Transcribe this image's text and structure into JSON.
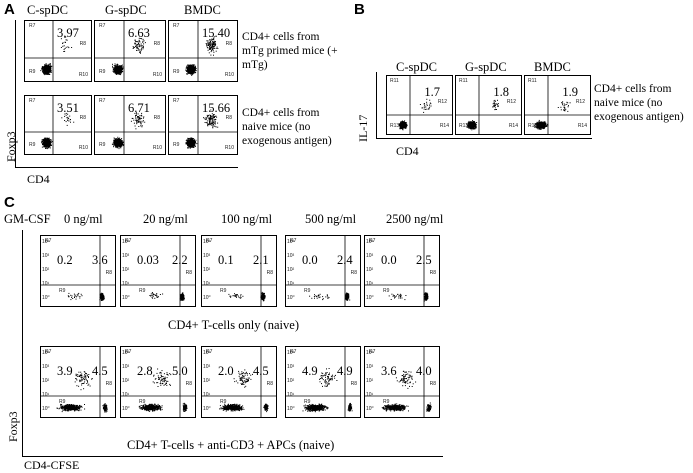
{
  "panel_a": {
    "letter": "A",
    "col_headers": [
      "C-spDC",
      "G-spDC",
      "BMDC"
    ],
    "y_axis_label": "Foxp3",
    "x_axis_label": "CD4",
    "rows": [
      {
        "values": [
          "3.97",
          "6.63",
          "15.40"
        ],
        "note": "CD4+ cells from mTg primed mice (+ mTg)"
      },
      {
        "values": [
          "3.51",
          "6.71",
          "15.66"
        ],
        "note": "CD4+ cells from naive mice (no exogenous antigen)"
      }
    ],
    "gates": [
      "R8",
      "R9",
      "R10",
      "R7"
    ]
  },
  "panel_b": {
    "letter": "B",
    "col_headers": [
      "C-spDC",
      "G-spDC",
      "BMDC"
    ],
    "values": [
      "1.7",
      "1.8",
      "1.9"
    ],
    "y_axis_label": "IL-17",
    "x_axis_label": "CD4",
    "note": "CD4+ cells from naive mice (no exogenous antigen)",
    "gates": [
      "R11",
      "R12",
      "R13",
      "R14"
    ]
  },
  "panel_c": {
    "letter": "C",
    "gmcsf_label": "GM-CSF",
    "concentrations": [
      "0 ng/ml",
      "20 ng/ml",
      "100 ng/ml",
      "500 ng/ml",
      "2500 ng/ml"
    ],
    "row1_values": [
      [
        "0.2",
        "3.6"
      ],
      [
        "0.03",
        "2.2"
      ],
      [
        "0.1",
        "2.1"
      ],
      [
        "0.0",
        "2.4"
      ],
      [
        "0.0",
        "2.5"
      ]
    ],
    "row1_caption": "CD4+ T-cells only (naive)",
    "row2_values": [
      [
        "3.9",
        "4.5"
      ],
      [
        "2.8",
        "5.0"
      ],
      [
        "2.0",
        "4.5"
      ],
      [
        "4.9",
        "4.9"
      ],
      [
        "3.6",
        "4.0"
      ]
    ],
    "row2_caption": "CD4+ T-cells + anti-CD3 + APCs (naive)",
    "y_axis_label": "Foxp3",
    "x_axis_label": "CD4-CFSE",
    "gates": [
      "R7",
      "R8",
      "R9"
    ],
    "tick_labels": [
      "10⁰",
      "10¹",
      "10²",
      "10³",
      "10⁴"
    ]
  }
}
